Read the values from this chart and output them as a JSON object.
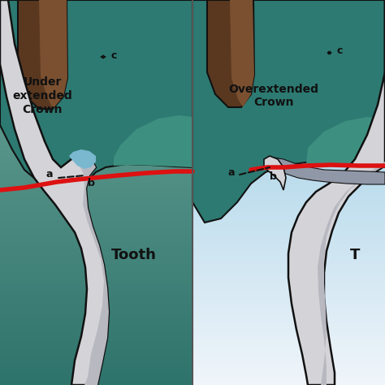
{
  "tooth_teal": "#2d7a72",
  "tooth_teal_light": "#3d9080",
  "tooth_teal_dark": "#1d5a52",
  "crown_light": "#d4d4d8",
  "crown_mid": "#b8b8c0",
  "crown_dark": "#9098a8",
  "crown_inner": "#8890a0",
  "outline": "#111111",
  "red_margin": "#dd1111",
  "root_brown": "#5a3820",
  "root_brown2": "#7a5030",
  "blue_gap": "#7ab8d0",
  "bg_left_top": "#4a9090",
  "bg_left_bot": "#2a6060",
  "bg_right_top": "#90c8e0",
  "bg_right_bot": "#d8eef8",
  "label_color": "#111111",
  "left_title": "Under\nextended\nCrown",
  "right_title": "Overextended\nCrown",
  "left_tooth_label": "Tooth",
  "right_tooth_label": "T"
}
